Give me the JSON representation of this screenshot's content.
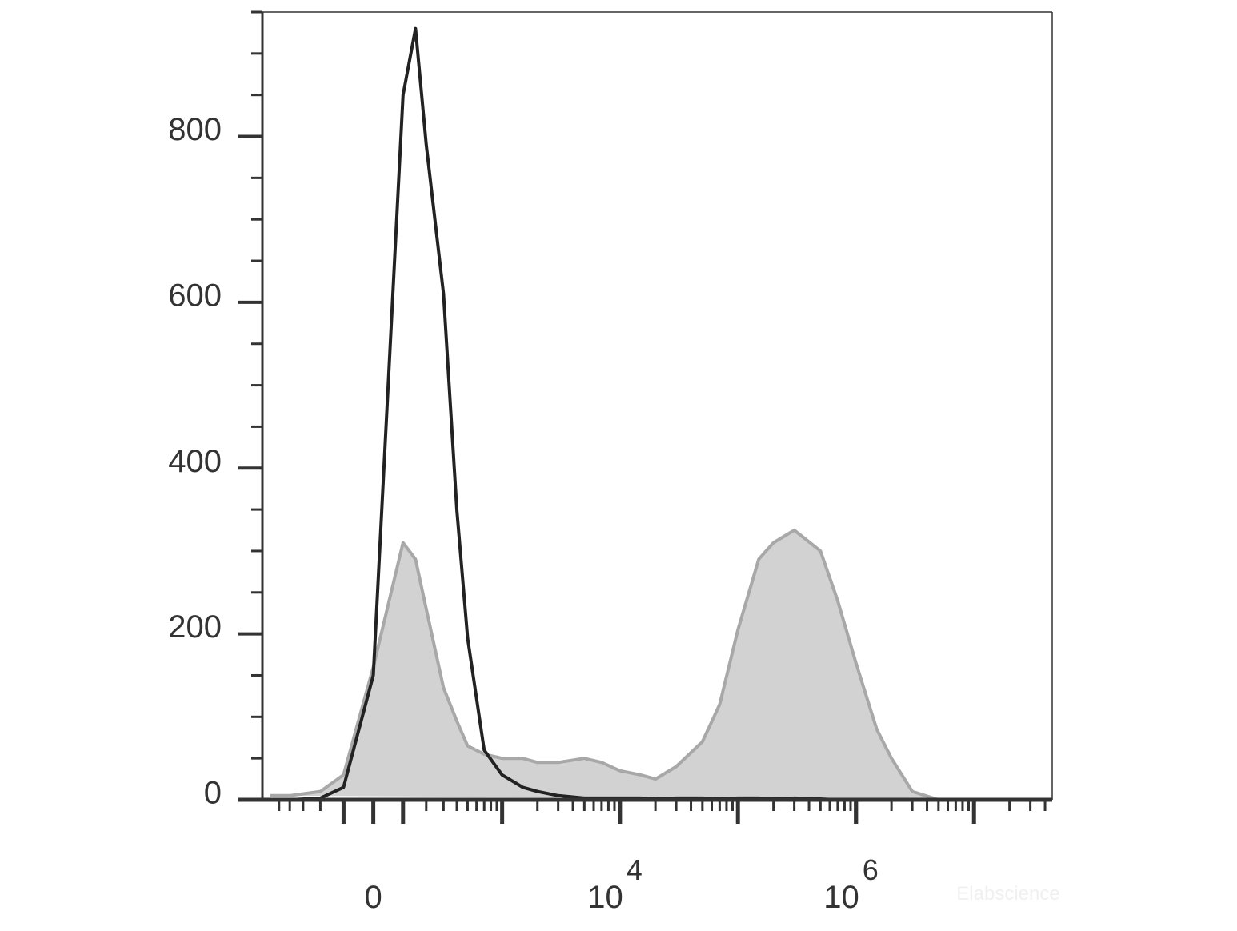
{
  "chart_data": {
    "type": "histogram-overlay",
    "xscale": "biexponential",
    "x": [
      -600,
      -400,
      -200,
      -100,
      0,
      100,
      150,
      200,
      300,
      400,
      500,
      700,
      1000,
      1500,
      2000,
      3000,
      5000,
      7000,
      10000,
      15000,
      20000,
      30000,
      50000,
      70000,
      100000,
      150000,
      200000,
      300000,
      500000,
      700000,
      1000000,
      1500000,
      2000000,
      3000000,
      5000000,
      10000000,
      20000000,
      40000000
    ],
    "series": [
      {
        "color": "#a8a8a8",
        "fill": "#d2d2d2",
        "filled": true,
        "values": [
          5,
          5,
          10,
          30,
          160,
          310,
          290,
          230,
          135,
          95,
          65,
          55,
          50,
          50,
          45,
          45,
          50,
          45,
          35,
          30,
          25,
          40,
          70,
          115,
          205,
          290,
          310,
          325,
          300,
          240,
          165,
          85,
          50,
          10,
          0,
          0,
          0,
          0
        ]
      },
      {
        "color": "#222222",
        "filled": false,
        "values": [
          0,
          0,
          2,
          15,
          150,
          850,
          930,
          790,
          610,
          350,
          195,
          60,
          30,
          15,
          10,
          5,
          2,
          2,
          2,
          2,
          1,
          2,
          2,
          1,
          2,
          2,
          1,
          2,
          1,
          0,
          0,
          0,
          0,
          0,
          0,
          0,
          0,
          0
        ]
      }
    ],
    "xlim": [
      -700,
      46000000
    ],
    "xticks": [
      0,
      {
        "value": 10000,
        "label": "10",
        "superscript": "4"
      },
      {
        "value": 1000000,
        "label": "10",
        "superscript": "6"
      }
    ],
    "ylim": [
      0,
      950
    ],
    "yticks": [
      0,
      200,
      400,
      600,
      800
    ],
    "watermark": "Elabscience"
  }
}
